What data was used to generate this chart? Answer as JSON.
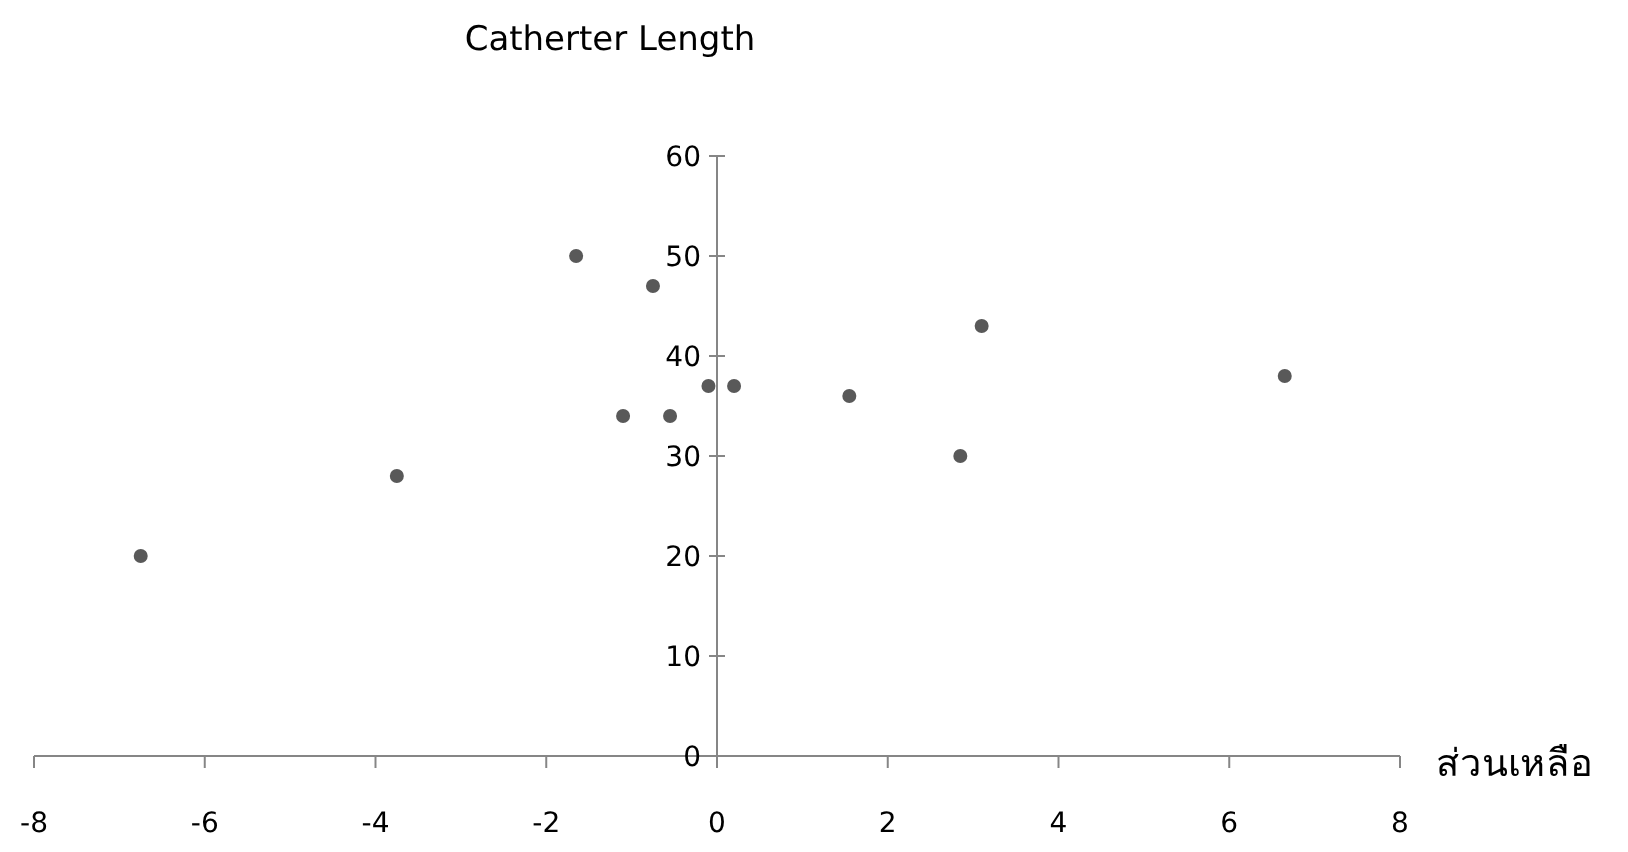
{
  "chart_data": {
    "type": "scatter",
    "title": "Catherter Length",
    "xlabel": "ส่วนเหลือ",
    "x": [
      -6.75,
      -3.75,
      -1.65,
      -0.75,
      -1.1,
      -0.55,
      -0.1,
      0.2,
      1.55,
      2.85,
      3.1,
      6.65
    ],
    "values": [
      20,
      28,
      50,
      47,
      34,
      34,
      37,
      37,
      36,
      30,
      43,
      38
    ],
    "color": "#595959",
    "marker": "circle",
    "xlim": [
      -8,
      8
    ],
    "ylim": [
      0,
      60
    ],
    "xticks": [
      -8,
      -6,
      -4,
      -2,
      0,
      2,
      4,
      6,
      8
    ],
    "yticks": [
      0,
      10,
      20,
      30,
      40,
      50,
      60
    ]
  }
}
